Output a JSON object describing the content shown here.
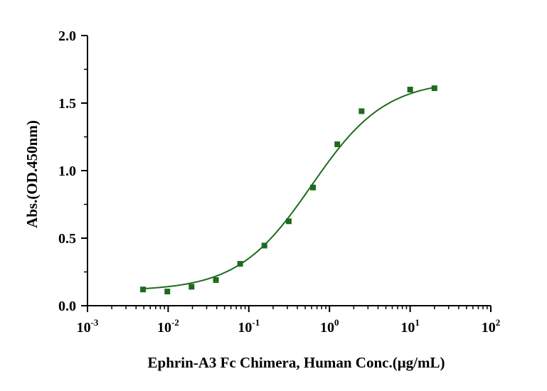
{
  "chart_data": {
    "type": "scatter",
    "x_scale": "log",
    "xlabel": "Ephrin-A3 Fc Chimera, Human Conc.(μg/mL)",
    "ylabel": "Abs.(OD.450nm)",
    "xlim": [
      0.001,
      100
    ],
    "ylim": [
      0,
      2.0
    ],
    "grid": false,
    "x_ticks": [
      {
        "base": "10",
        "exp": "-3",
        "value": 0.001
      },
      {
        "base": "10",
        "exp": "-2",
        "value": 0.01
      },
      {
        "base": "10",
        "exp": "-1",
        "value": 0.1
      },
      {
        "base": "10",
        "exp": "0",
        "value": 1
      },
      {
        "base": "10",
        "exp": "1",
        "value": 10
      },
      {
        "base": "10",
        "exp": "2",
        "value": 100
      }
    ],
    "y_ticks": [
      {
        "label": "0.0",
        "value": 0.0
      },
      {
        "label": "0.5",
        "value": 0.5
      },
      {
        "label": "1.0",
        "value": 1.0
      },
      {
        "label": "1.5",
        "value": 1.5
      },
      {
        "label": "2.0",
        "value": 2.0
      }
    ],
    "color": "#1e6b1e",
    "series": [
      {
        "x": [
          0.00488,
          0.00977,
          0.0195,
          0.0391,
          0.0781,
          0.156,
          0.3125,
          0.625,
          1.25,
          2.5,
          10,
          20
        ],
        "y": [
          0.12,
          0.105,
          0.14,
          0.19,
          0.31,
          0.445,
          0.625,
          0.875,
          1.195,
          1.44,
          1.6,
          1.61
        ]
      }
    ],
    "fit": {
      "model": "4PL",
      "bottom": 0.11,
      "top": 1.67,
      "ec50": 0.6,
      "hill": 0.95
    }
  }
}
